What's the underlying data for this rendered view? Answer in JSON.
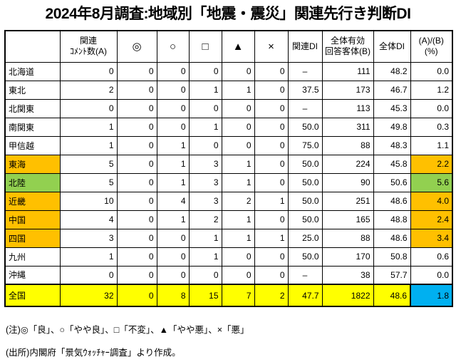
{
  "title": "2024年8月調査:地域別「地震・震災」関連先行き判断DI",
  "colors": {
    "orange": "#FFC000",
    "green": "#92D050",
    "yellow": "#FFFF00",
    "blue": "#00B0F0",
    "border": "#000000"
  },
  "chart_data": {
    "type": "table",
    "columns": [
      "",
      "関連\nｺﾒﾝﾄ数(A)",
      "◎",
      "○",
      "□",
      "▲",
      "×",
      "関連DI",
      "全体有効\n回答客体(B)",
      "全体DI",
      "(A)/(B)\n(%)"
    ],
    "column_names": [
      "region",
      "comment-count-a",
      "mark-excellent",
      "mark-good",
      "mark-unchanged",
      "mark-slightly-bad",
      "mark-bad",
      "related-di",
      "valid-respondents-b",
      "overall-di",
      "a-b-ratio-pct"
    ],
    "rows": [
      {
        "region": "北海道",
        "values": [
          "0",
          "0",
          "0",
          "0",
          "0",
          "0",
          "–",
          "111",
          "48.2",
          "0.0"
        ],
        "region_highlight": null,
        "ratio_highlight": null,
        "row_highlight": null,
        "total": false
      },
      {
        "region": "東北",
        "values": [
          "2",
          "0",
          "0",
          "1",
          "1",
          "0",
          "37.5",
          "173",
          "46.7",
          "1.2"
        ],
        "region_highlight": null,
        "ratio_highlight": null,
        "row_highlight": null,
        "total": false
      },
      {
        "region": "北関東",
        "values": [
          "0",
          "0",
          "0",
          "0",
          "0",
          "0",
          "–",
          "113",
          "45.3",
          "0.0"
        ],
        "region_highlight": null,
        "ratio_highlight": null,
        "row_highlight": null,
        "total": false
      },
      {
        "region": "南関東",
        "values": [
          "1",
          "0",
          "0",
          "1",
          "0",
          "0",
          "50.0",
          "311",
          "49.8",
          "0.3"
        ],
        "region_highlight": null,
        "ratio_highlight": null,
        "row_highlight": null,
        "total": false
      },
      {
        "region": "甲信越",
        "values": [
          "1",
          "0",
          "1",
          "0",
          "0",
          "0",
          "75.0",
          "88",
          "48.3",
          "1.1"
        ],
        "region_highlight": null,
        "ratio_highlight": null,
        "row_highlight": null,
        "total": false
      },
      {
        "region": "東海",
        "values": [
          "5",
          "0",
          "1",
          "3",
          "1",
          "0",
          "50.0",
          "224",
          "45.8",
          "2.2"
        ],
        "region_highlight": "orange",
        "ratio_highlight": "orange",
        "row_highlight": null,
        "total": false
      },
      {
        "region": "北陸",
        "values": [
          "5",
          "0",
          "1",
          "3",
          "1",
          "0",
          "50.0",
          "90",
          "50.6",
          "5.6"
        ],
        "region_highlight": "green",
        "ratio_highlight": "green",
        "row_highlight": null,
        "total": false
      },
      {
        "region": "近畿",
        "values": [
          "10",
          "0",
          "4",
          "3",
          "2",
          "1",
          "50.0",
          "251",
          "48.6",
          "4.0"
        ],
        "region_highlight": "orange",
        "ratio_highlight": "orange",
        "row_highlight": null,
        "total": false
      },
      {
        "region": "中国",
        "values": [
          "4",
          "0",
          "1",
          "2",
          "1",
          "0",
          "50.0",
          "165",
          "48.8",
          "2.4"
        ],
        "region_highlight": "orange",
        "ratio_highlight": "orange",
        "row_highlight": null,
        "total": false
      },
      {
        "region": "四国",
        "values": [
          "3",
          "0",
          "0",
          "1",
          "1",
          "1",
          "25.0",
          "88",
          "48.6",
          "3.4"
        ],
        "region_highlight": "orange",
        "ratio_highlight": "orange",
        "row_highlight": null,
        "total": false
      },
      {
        "region": "九州",
        "values": [
          "1",
          "0",
          "0",
          "1",
          "0",
          "0",
          "50.0",
          "170",
          "50.8",
          "0.6"
        ],
        "region_highlight": null,
        "ratio_highlight": null,
        "row_highlight": null,
        "total": false
      },
      {
        "region": "沖縄",
        "values": [
          "0",
          "0",
          "0",
          "0",
          "0",
          "0",
          "–",
          "38",
          "57.7",
          "0.0"
        ],
        "region_highlight": null,
        "ratio_highlight": null,
        "row_highlight": null,
        "total": false
      },
      {
        "region": "全国",
        "values": [
          "32",
          "0",
          "8",
          "15",
          "7",
          "2",
          "47.7",
          "1822",
          "48.6",
          "1.8"
        ],
        "region_highlight": "yellow",
        "ratio_highlight": "blue",
        "row_highlight": "yellow",
        "total": true
      }
    ]
  },
  "notes": [
    "(注)◎「良」、○「やや良」、□「不変」、▲「やや悪」、×「悪」",
    "(出所)内閣府「景気ｳｫｯﾁｬｰ調査」より作成。"
  ]
}
